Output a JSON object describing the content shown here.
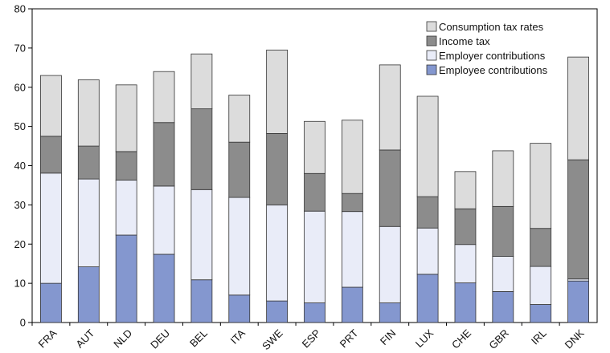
{
  "chart_data": {
    "type": "bar",
    "stacked": true,
    "categories": [
      "FRA",
      "AUT",
      "NLD",
      "DEU",
      "BEL",
      "ITA",
      "SWE",
      "ESP",
      "PRT",
      "FIN",
      "LUX",
      "CHE",
      "GBR",
      "IRL",
      "DNK"
    ],
    "series": [
      {
        "name": "Employee contributions",
        "color": "#8497cf",
        "values": [
          10,
          14.2,
          22.3,
          17.4,
          10.9,
          7.0,
          5.5,
          5.0,
          9.0,
          5.0,
          12.3,
          10.1,
          7.9,
          4.6,
          10.6
        ]
      },
      {
        "name": "Employer contributions",
        "color": "#e9ecf8",
        "values": [
          28.1,
          22.4,
          14.0,
          17.4,
          23.0,
          24.9,
          24.5,
          23.4,
          19.3,
          19.5,
          11.8,
          9.8,
          9.0,
          9.7,
          0.5
        ]
      },
      {
        "name": "Income tax",
        "color": "#8c8c8c",
        "values": [
          9.4,
          8.4,
          7.3,
          16.2,
          20.6,
          14.1,
          18.2,
          9.6,
          4.6,
          19.5,
          8.0,
          9.1,
          12.7,
          9.7,
          30.4
        ]
      },
      {
        "name": "Consumption tax rates",
        "color": "#dcdcdc",
        "values": [
          15.5,
          16.9,
          17.0,
          13.0,
          14.0,
          12.0,
          21.3,
          13.3,
          18.7,
          21.7,
          25.6,
          9.5,
          14.2,
          21.7,
          26.2
        ]
      }
    ],
    "legend_order": [
      "Consumption tax rates",
      "Income tax",
      "Employer contributions",
      "Employee contributions"
    ],
    "ylim": [
      0,
      80
    ],
    "yticks": [
      0,
      10,
      20,
      30,
      40,
      50,
      60,
      70,
      80
    ],
    "xlabel": "",
    "ylabel": "",
    "title": "",
    "grid": false,
    "legend_position": "top-right",
    "x_tick_rotation": -45
  }
}
